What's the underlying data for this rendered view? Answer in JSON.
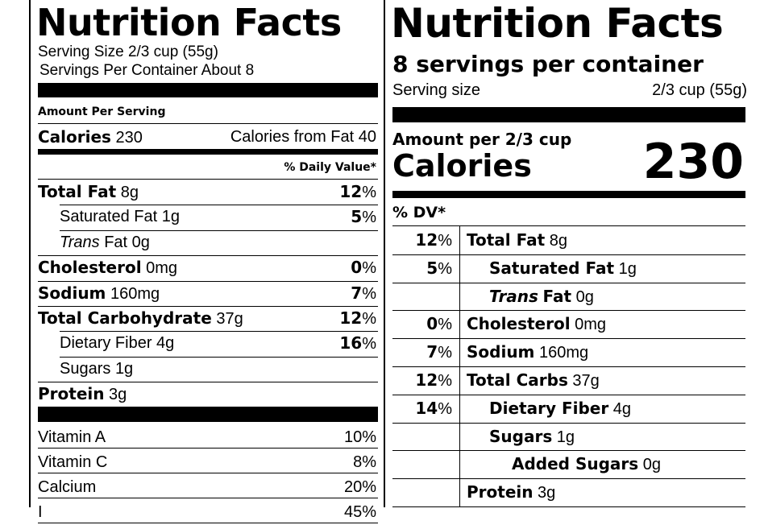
{
  "old_label": {
    "title": "Nutrition Facts",
    "serving_size": "Serving Size 2/3 cup (55g)",
    "servings_per_container": "Servings Per Container About 8",
    "amount_per_serving": "Amount Per Serving",
    "calories_label": "Calories",
    "calories_value": "230",
    "calories_from_fat": "Calories from Fat 40",
    "daily_value_header": "% Daily Value*",
    "nutrients": [
      {
        "name": "Total Fat",
        "amount": "8g",
        "dv": "12",
        "bold": true,
        "indent": false,
        "italic_prefix": ""
      },
      {
        "name": "Saturated Fat",
        "amount": "1g",
        "dv": "5",
        "bold": false,
        "indent": true,
        "italic_prefix": ""
      },
      {
        "name": "Fat",
        "amount": "0g",
        "dv": "",
        "bold": false,
        "indent": true,
        "italic_prefix": "Trans"
      },
      {
        "name": "Cholesterol",
        "amount": "0mg",
        "dv": "0",
        "bold": true,
        "indent": false,
        "italic_prefix": ""
      },
      {
        "name": "Sodium",
        "amount": "160mg",
        "dv": "7",
        "bold": true,
        "indent": false,
        "italic_prefix": ""
      },
      {
        "name": "Total Carbohydrate",
        "amount": "37g",
        "dv": "12",
        "bold": true,
        "indent": false,
        "italic_prefix": ""
      },
      {
        "name": "Dietary Fiber",
        "amount": "4g",
        "dv": "16",
        "bold": false,
        "indent": true,
        "italic_prefix": ""
      },
      {
        "name": "Sugars",
        "amount": "1g",
        "dv": "",
        "bold": false,
        "indent": true,
        "italic_prefix": ""
      },
      {
        "name": "Protein",
        "amount": "3g",
        "dv": "",
        "bold": true,
        "indent": false,
        "italic_prefix": ""
      }
    ],
    "vitamins": [
      {
        "name": "Vitamin A",
        "dv": "10%"
      },
      {
        "name": "Vitamin C",
        "dv": "8%"
      },
      {
        "name": "Calcium",
        "dv": "20%"
      },
      {
        "name": "I",
        "dv": "45%"
      }
    ]
  },
  "new_label": {
    "title": "Nutrition Facts",
    "servings_per_container": "8 servings per container",
    "serving_size_label": "Serving size",
    "serving_size_value": "2/3 cup (55g)",
    "amount_per": "Amount per 2/3 cup",
    "calories_label": "Calories",
    "calories_value": "230",
    "dv_header": "% DV*",
    "nutrients": [
      {
        "dv": "12",
        "name": "Total Fat",
        "amount": "8g",
        "level": 0,
        "italic_prefix": ""
      },
      {
        "dv": "5",
        "name": "Saturated Fat",
        "amount": "1g",
        "level": 1,
        "italic_prefix": ""
      },
      {
        "dv": "",
        "name": "Fat",
        "amount": "0g",
        "level": 1,
        "italic_prefix": "Trans"
      },
      {
        "dv": "0",
        "name": "Cholesterol",
        "amount": "0mg",
        "level": 0,
        "italic_prefix": ""
      },
      {
        "dv": "7",
        "name": "Sodium",
        "amount": "160mg",
        "level": 0,
        "italic_prefix": ""
      },
      {
        "dv": "12",
        "name": "Total Carbs",
        "amount": "37g",
        "level": 0,
        "italic_prefix": ""
      },
      {
        "dv": "14",
        "name": "Dietary Fiber",
        "amount": "4g",
        "level": 1,
        "italic_prefix": ""
      },
      {
        "dv": "",
        "name": "Sugars",
        "amount": "1g",
        "level": 1,
        "italic_prefix": ""
      },
      {
        "dv": "",
        "name": "Added Sugars",
        "amount": "0g",
        "level": 2,
        "italic_prefix": ""
      },
      {
        "dv": "",
        "name": "Protein",
        "amount": "3g",
        "level": 0,
        "italic_prefix": ""
      }
    ]
  }
}
